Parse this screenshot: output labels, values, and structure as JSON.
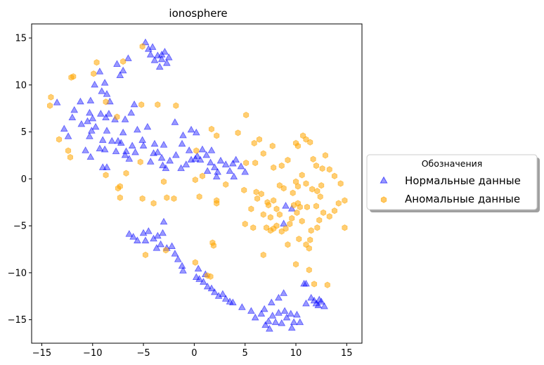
{
  "chart_data": {
    "type": "scatter",
    "title": "ionosphere",
    "xlabel": "",
    "ylabel": "",
    "xlim": [
      -16,
      16.5
    ],
    "ylim": [
      -17.5,
      16.5
    ],
    "xticks": [
      -15,
      -10,
      -5,
      0,
      5,
      10,
      15
    ],
    "yticks": [
      -15,
      -10,
      -5,
      0,
      5,
      10,
      15
    ],
    "grid": false,
    "legend": {
      "title": "Обозначения",
      "placement": "right-outside"
    },
    "series": [
      {
        "name": "Нормальные данные",
        "marker": "triangle",
        "color": "#0000ff",
        "points": [
          [
            -4.8,
            14.5
          ],
          [
            -4.5,
            13.8
          ],
          [
            -4.1,
            14.0
          ],
          [
            -3.6,
            13.1
          ],
          [
            -3.2,
            13.2
          ],
          [
            -2.9,
            13.5
          ],
          [
            -3.2,
            12.7
          ],
          [
            -2.7,
            12.3
          ],
          [
            -3.4,
            11.9
          ],
          [
            -2.5,
            12.9
          ],
          [
            -4.3,
            13.2
          ],
          [
            -3.9,
            12.6
          ],
          [
            -6.5,
            12.8
          ],
          [
            -7.3,
            11.0
          ],
          [
            -7.6,
            12.2
          ],
          [
            -7.0,
            11.5
          ],
          [
            -9.3,
            11.4
          ],
          [
            -8.8,
            10.2
          ],
          [
            -9.1,
            9.3
          ],
          [
            -8.3,
            8.2
          ],
          [
            -8.6,
            9.0
          ],
          [
            -9.8,
            10.0
          ],
          [
            -10.2,
            8.3
          ],
          [
            -11.2,
            8.2
          ],
          [
            -11.8,
            7.3
          ],
          [
            -12.0,
            6.5
          ],
          [
            -10.3,
            7.0
          ],
          [
            -10.0,
            6.4
          ],
          [
            -10.5,
            6.1
          ],
          [
            -9.7,
            5.5
          ],
          [
            -10.1,
            5.1
          ],
          [
            -10.3,
            4.5
          ],
          [
            -11.1,
            5.8
          ],
          [
            -12.8,
            5.3
          ],
          [
            -12.4,
            4.5
          ],
          [
            -13.5,
            8.1
          ],
          [
            -9.2,
            6.9
          ],
          [
            -8.7,
            6.5
          ],
          [
            -8.4,
            6.9
          ],
          [
            -7.8,
            6.3
          ],
          [
            -6.8,
            6.3
          ],
          [
            -6.2,
            7.0
          ],
          [
            -5.9,
            7.9
          ],
          [
            -7.0,
            4.9
          ],
          [
            -7.5,
            4.0
          ],
          [
            -6.1,
            3.5
          ],
          [
            -5.0,
            3.5
          ],
          [
            -5.6,
            5.2
          ],
          [
            -6.7,
            2.9
          ],
          [
            -5.1,
            4.1
          ],
          [
            -4.6,
            5.5
          ],
          [
            -3.9,
            3.7
          ],
          [
            -3.0,
            3.6
          ],
          [
            -8.6,
            5.1
          ],
          [
            -9.0,
            4.1
          ],
          [
            -9.3,
            3.2
          ],
          [
            -8.8,
            3.1
          ],
          [
            -8.1,
            4.0
          ],
          [
            -7.7,
            2.9
          ],
          [
            -7.2,
            3.8
          ],
          [
            -6.8,
            2.5
          ],
          [
            -6.4,
            2.1
          ],
          [
            -5.8,
            2.8
          ],
          [
            -10.7,
            3.0
          ],
          [
            -10.2,
            2.3
          ],
          [
            -9.0,
            1.2
          ],
          [
            -8.6,
            1.2
          ],
          [
            -4.3,
            1.8
          ],
          [
            -4.0,
            2.7
          ],
          [
            -3.6,
            2.8
          ],
          [
            -3.2,
            2.2
          ],
          [
            -3.1,
            1.4
          ],
          [
            -2.8,
            1.1
          ],
          [
            -2.4,
            1.9
          ],
          [
            -1.8,
            2.5
          ],
          [
            -1.2,
            3.7
          ],
          [
            -1.1,
            4.6
          ],
          [
            -0.5,
            3.0
          ],
          [
            -0.3,
            2.0
          ],
          [
            -0.8,
            1.5
          ],
          [
            -1.3,
            1.1
          ],
          [
            -1.9,
            6.0
          ],
          [
            0.1,
            2.1
          ],
          [
            0.3,
            2.4
          ],
          [
            0.6,
            2.0
          ],
          [
            1.2,
            2.5
          ],
          [
            1.7,
            3.0
          ],
          [
            1.6,
            1.7
          ],
          [
            2.0,
            1.2
          ],
          [
            2.3,
            0.7
          ],
          [
            2.6,
            1.9
          ],
          [
            3.1,
            1.5
          ],
          [
            3.5,
            0.8
          ],
          [
            3.8,
            1.6
          ],
          [
            4.1,
            2.0
          ],
          [
            4.6,
            1.3
          ],
          [
            5.0,
            0.7
          ],
          [
            3.9,
            0.2
          ],
          [
            2.2,
            0.2
          ],
          [
            1.3,
            0.8
          ],
          [
            -0.3,
            5.2
          ],
          [
            0.2,
            4.9
          ],
          [
            0.8,
            3.1
          ],
          [
            -5.0,
            -5.8
          ],
          [
            -4.5,
            -5.6
          ],
          [
            -4.0,
            -6.4
          ],
          [
            -3.6,
            -6.1
          ],
          [
            -3.3,
            -7.0
          ],
          [
            -3.1,
            -5.8
          ],
          [
            -3.0,
            -4.6
          ],
          [
            -2.7,
            -7.4
          ],
          [
            -3.7,
            -7.4
          ],
          [
            -4.8,
            -6.6
          ],
          [
            -5.6,
            -6.6
          ],
          [
            -6.0,
            -6.2
          ],
          [
            -6.4,
            -5.9
          ],
          [
            -2.2,
            -7.2
          ],
          [
            -1.9,
            -8.0
          ],
          [
            -1.6,
            -8.6
          ],
          [
            -1.2,
            -9.3
          ],
          [
            -1.1,
            -9.8
          ],
          [
            0.2,
            -10.5
          ],
          [
            0.5,
            -10.7
          ],
          [
            0.9,
            -11.0
          ],
          [
            1.3,
            -11.5
          ],
          [
            1.7,
            -11.7
          ],
          [
            2.0,
            -12.1
          ],
          [
            2.4,
            -12.5
          ],
          [
            2.8,
            -12.3
          ],
          [
            3.1,
            -12.8
          ],
          [
            3.5,
            -13.1
          ],
          [
            3.8,
            -13.2
          ],
          [
            4.7,
            -13.7
          ],
          [
            0.4,
            -9.6
          ],
          [
            1.1,
            -10.2
          ],
          [
            5.6,
            -14.1
          ],
          [
            6.0,
            -14.8
          ],
          [
            6.6,
            -14.4
          ],
          [
            6.9,
            -13.9
          ],
          [
            7.3,
            -15.2
          ],
          [
            7.0,
            -15.6
          ],
          [
            7.4,
            -16.0
          ],
          [
            7.7,
            -14.6
          ],
          [
            8.0,
            -15.3
          ],
          [
            8.3,
            -14.3
          ],
          [
            8.6,
            -15.4
          ],
          [
            8.9,
            -14.1
          ],
          [
            9.1,
            -14.8
          ],
          [
            9.5,
            -14.4
          ],
          [
            9.8,
            -15.3
          ],
          [
            10.1,
            -14.5
          ],
          [
            10.4,
            -15.3
          ],
          [
            7.6,
            -13.2
          ],
          [
            8.3,
            -12.7
          ],
          [
            8.8,
            -12.2
          ],
          [
            9.6,
            -15.9
          ],
          [
            11.0,
            -13.3
          ],
          [
            11.5,
            -12.7
          ],
          [
            11.8,
            -13.0
          ],
          [
            12.0,
            -13.3
          ],
          [
            12.2,
            -13.5
          ],
          [
            12.5,
            -13.1
          ],
          [
            12.8,
            -13.6
          ],
          [
            12.3,
            -12.9
          ],
          [
            11.0,
            -11.2
          ],
          [
            10.8,
            -11.2
          ],
          [
            9.0,
            -2.9
          ],
          [
            8.8,
            -4.8
          ],
          [
            9.6,
            -3.2
          ]
        ]
      },
      {
        "name": "Аномальные данные",
        "marker": "hexagon",
        "color": "#ffa500",
        "points": [
          [
            -5.1,
            14.1
          ],
          [
            -9.6,
            12.4
          ],
          [
            -7.0,
            12.5
          ],
          [
            -12.1,
            10.8
          ],
          [
            -11.9,
            10.9
          ],
          [
            -9.9,
            11.2
          ],
          [
            -14.1,
            8.7
          ],
          [
            -14.2,
            7.8
          ],
          [
            -13.3,
            4.2
          ],
          [
            -12.4,
            3.0
          ],
          [
            -12.2,
            2.3
          ],
          [
            -8.7,
            8.2
          ],
          [
            -7.6,
            6.6
          ],
          [
            -5.2,
            7.9
          ],
          [
            -3.6,
            7.9
          ],
          [
            -1.8,
            7.8
          ],
          [
            -5.3,
            1.8
          ],
          [
            -6.7,
            0.6
          ],
          [
            -8.7,
            0.4
          ],
          [
            -7.5,
            -1.0
          ],
          [
            -7.3,
            -0.8
          ],
          [
            -7.3,
            -2.0
          ],
          [
            -5.1,
            -2.1
          ],
          [
            -2.7,
            -2.0
          ],
          [
            -3.0,
            -0.3
          ],
          [
            0.2,
            3.0
          ],
          [
            1.7,
            5.3
          ],
          [
            2.2,
            4.6
          ],
          [
            0.1,
            -0.1
          ],
          [
            0.8,
            0.3
          ],
          [
            2.2,
            -2.3
          ],
          [
            2.2,
            -2.6
          ],
          [
            3.1,
            -0.6
          ],
          [
            4.3,
            4.9
          ],
          [
            5.1,
            6.8
          ],
          [
            5.9,
            3.8
          ],
          [
            6.0,
            1.7
          ],
          [
            6.4,
            4.2
          ],
          [
            6.8,
            2.7
          ],
          [
            7.7,
            3.5
          ],
          [
            5.1,
            1.7
          ],
          [
            4.9,
            -1.2
          ],
          [
            6.1,
            -1.4
          ],
          [
            6.6,
            -1.6
          ],
          [
            6.2,
            -2.1
          ],
          [
            7.3,
            -2.8
          ],
          [
            7.8,
            1.2
          ],
          [
            9.2,
            2.0
          ],
          [
            10.0,
            3.8
          ],
          [
            10.2,
            3.5
          ],
          [
            10.7,
            4.6
          ],
          [
            11.0,
            4.2
          ],
          [
            11.4,
            3.9
          ],
          [
            11.7,
            2.1
          ],
          [
            12.0,
            1.4
          ],
          [
            12.6,
            1.1
          ],
          [
            12.9,
            2.5
          ],
          [
            13.3,
            1.0
          ],
          [
            13.8,
            0.3
          ],
          [
            14.4,
            -0.5
          ],
          [
            14.8,
            -2.3
          ],
          [
            14.2,
            -2.6
          ],
          [
            13.8,
            -3.4
          ],
          [
            13.3,
            -4.0
          ],
          [
            12.7,
            -3.6
          ],
          [
            12.3,
            -4.4
          ],
          [
            12.1,
            -5.2
          ],
          [
            11.5,
            -5.5
          ],
          [
            11.4,
            -6.5
          ],
          [
            11.3,
            -7.4
          ],
          [
            12.0,
            -2.9
          ],
          [
            12.4,
            -1.9
          ],
          [
            12.1,
            -1.3
          ],
          [
            12.5,
            -0.7
          ],
          [
            11.6,
            -1.1
          ],
          [
            11.0,
            -0.5
          ],
          [
            10.6,
            0.4
          ],
          [
            10.2,
            -0.8
          ],
          [
            9.7,
            -1.5
          ],
          [
            9.8,
            -2.8
          ],
          [
            10.4,
            -3.0
          ],
          [
            10.1,
            -3.6
          ],
          [
            9.6,
            -4.2
          ],
          [
            9.4,
            -4.8
          ],
          [
            9.0,
            -5.3
          ],
          [
            8.6,
            -5.6
          ],
          [
            8.1,
            -5.0
          ],
          [
            7.8,
            -5.3
          ],
          [
            7.5,
            -5.5
          ],
          [
            7.1,
            -5.2
          ],
          [
            8.4,
            -3.8
          ],
          [
            8.1,
            -3.2
          ],
          [
            7.8,
            -2.3
          ],
          [
            7.2,
            -2.5
          ],
          [
            6.8,
            -3.8
          ],
          [
            5.8,
            -5.2
          ],
          [
            5.0,
            -4.8
          ],
          [
            5.6,
            -3.2
          ],
          [
            8.4,
            -0.7
          ],
          [
            8.8,
            -1.0
          ],
          [
            8.6,
            1.4
          ],
          [
            10.0,
            -0.3
          ],
          [
            11.0,
            -7.0
          ],
          [
            10.0,
            -9.1
          ],
          [
            11.3,
            -9.7
          ],
          [
            11.8,
            -11.2
          ],
          [
            14.8,
            -5.2
          ],
          [
            13.1,
            -11.3
          ],
          [
            6.8,
            -8.1
          ],
          [
            9.2,
            -7.0
          ],
          [
            10.3,
            -6.4
          ],
          [
            10.6,
            -4.5
          ],
          [
            11.1,
            -3.0
          ],
          [
            10.2,
            -2.6
          ],
          [
            -4.8,
            -8.1
          ],
          [
            -2.8,
            -7.6
          ],
          [
            -4.0,
            -2.6
          ],
          [
            1.8,
            -6.8
          ],
          [
            1.9,
            -7.1
          ],
          [
            0.1,
            -8.9
          ],
          [
            1.6,
            -10.4
          ],
          [
            1.3,
            -10.3
          ],
          [
            -2.0,
            -2.1
          ],
          [
            0.5,
            -1.9
          ],
          [
            7.5,
            -4.1
          ]
        ]
      }
    ]
  }
}
